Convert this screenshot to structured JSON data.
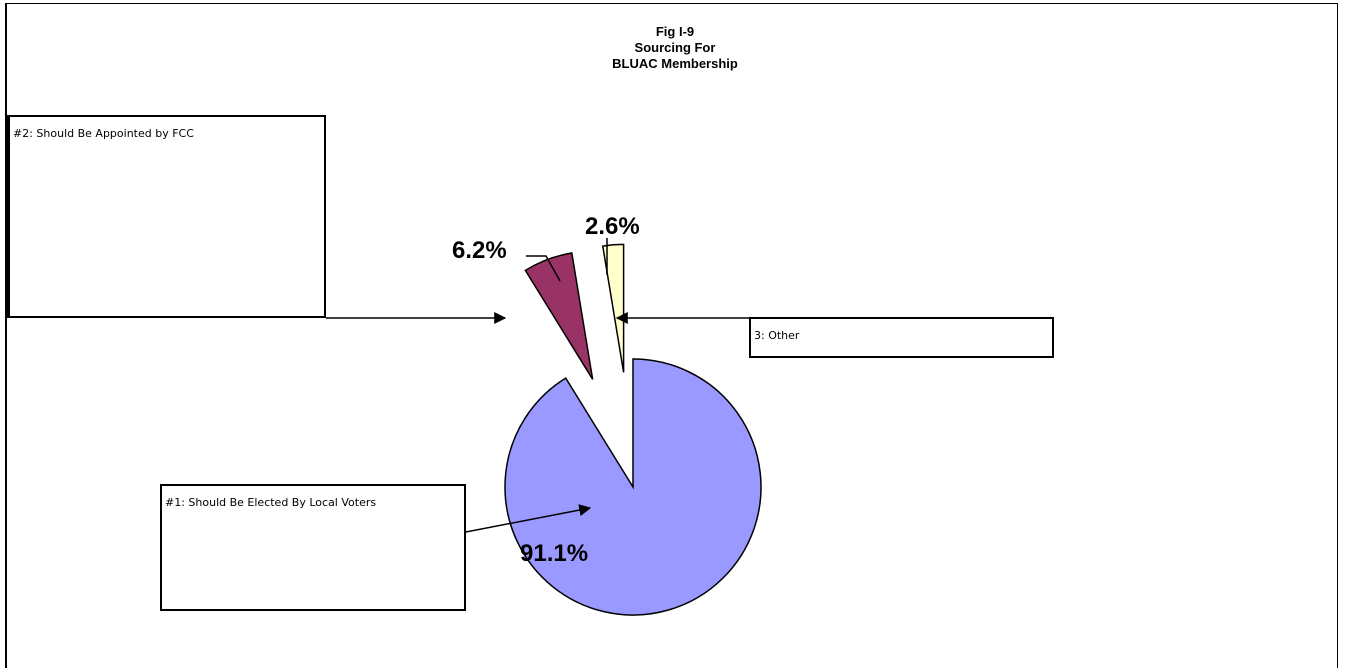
{
  "chart_data": {
    "type": "pie",
    "title": [
      "Fig I-9",
      "Sourcing For",
      "BLUAC Membership"
    ],
    "slices": [
      {
        "label": "#1: Should Be Elected By Local Voters",
        "value": 91.1,
        "value_label": "91.1%",
        "color": "#9999ff",
        "exploded": false
      },
      {
        "label": "#2: Should Be Appointed  by FCC",
        "value": 6.2,
        "value_label": "6.2%",
        "color": "#993366",
        "exploded": true
      },
      {
        "label": "3: Other",
        "value": 2.6,
        "value_label": "2.6%",
        "color": "#ffffcc",
        "exploded": true
      }
    ],
    "legend": "callout boxes with arrows"
  }
}
